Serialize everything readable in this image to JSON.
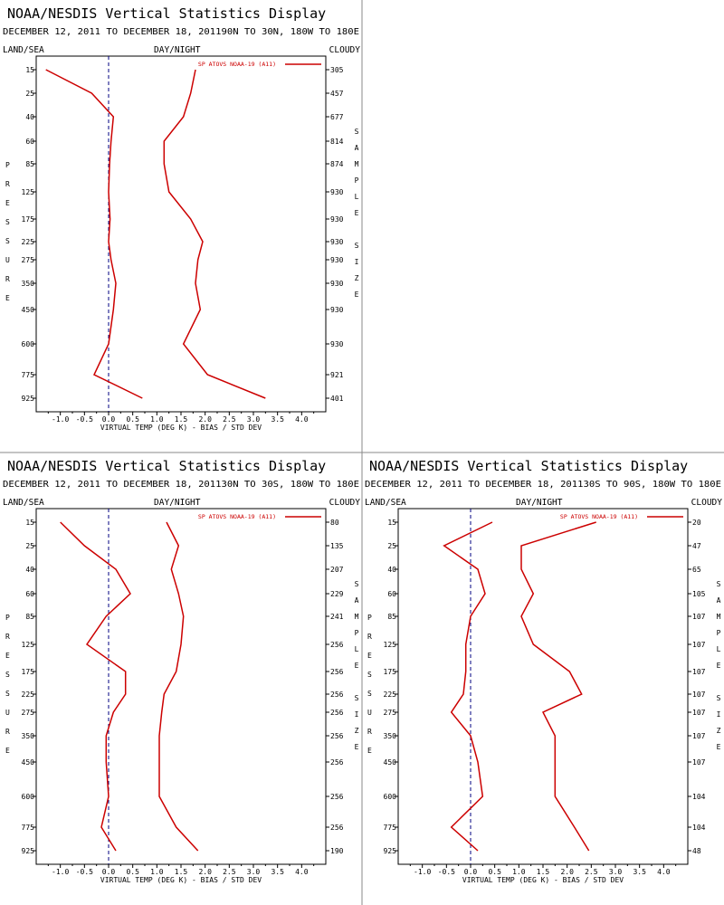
{
  "colors": {
    "series": "#cc0000",
    "zero_line": "#000080",
    "divider": "#888888"
  },
  "labels": {
    "land_sea": "LAND/SEA",
    "day_night": "DAY/NIGHT",
    "cloudy": "CLOUDY",
    "xlabel": "VIRTUAL TEMP (DEG K) - BIAS / STD DEV",
    "left_vertical": [
      "P",
      "R",
      "E",
      "S",
      "S",
      "U",
      "R",
      "E"
    ],
    "right_vertical": [
      "S",
      "A",
      "M",
      "P",
      "L",
      "E",
      "",
      "S",
      "I",
      "Z",
      "E"
    ]
  },
  "chart_data": [
    {
      "type": "line",
      "title": "NOAA/NESDIS Vertical Statistics Display",
      "subtitle": "DECEMBER 12, 2011 TO DECEMBER 18, 201190N TO 30N, 180W TO 180E",
      "legend": "SP ATOVS NOAA-19 (A11)",
      "legend_position": "top-right",
      "xlim": [
        -1.5,
        4.5
      ],
      "xticks": [
        "-1.0",
        "-0.5",
        "0.0",
        "0.5",
        "1.0",
        "1.5",
        "2.0",
        "2.5",
        "3.0",
        "3.5",
        "4.0"
      ],
      "pressure_levels": [
        "15",
        "25",
        "40",
        "60",
        "85",
        "125",
        "175",
        "225",
        "275",
        "350",
        "450",
        "600",
        "775",
        "925"
      ],
      "series": [
        {
          "values": [
            -1.3,
            -0.35,
            0.1,
            0.05,
            0.02,
            0.0,
            0.03,
            0.0,
            0.05,
            0.15,
            0.1,
            0.0,
            -0.3,
            0.7
          ]
        },
        {
          "values": [
            1.8,
            1.7,
            1.55,
            1.15,
            1.15,
            1.25,
            1.7,
            1.95,
            1.85,
            1.8,
            1.9,
            1.55,
            2.05,
            3.25
          ]
        }
      ],
      "sample_size": [
        "305",
        "457",
        "677",
        "814",
        "874",
        "930",
        "930",
        "930",
        "930",
        "930",
        "930",
        "930",
        "921",
        "401"
      ]
    },
    {
      "type": "line",
      "title": "NOAA/NESDIS Vertical Statistics Display",
      "subtitle": "DECEMBER 12, 2011 TO DECEMBER 18, 201130N TO 30S, 180W TO 180E",
      "legend": "SP ATOVS NOAA-19 (A11)",
      "legend_position": "top-right",
      "xlim": [
        -1.5,
        4.5
      ],
      "xticks": [
        "-1.0",
        "-0.5",
        "0.0",
        "0.5",
        "1.0",
        "1.5",
        "2.0",
        "2.5",
        "3.0",
        "3.5",
        "4.0"
      ],
      "pressure_levels": [
        "15",
        "25",
        "40",
        "60",
        "85",
        "125",
        "175",
        "225",
        "275",
        "350",
        "450",
        "600",
        "775",
        "925"
      ],
      "series": [
        {
          "values": [
            -1.0,
            -0.5,
            0.15,
            0.45,
            -0.05,
            -0.45,
            0.35,
            0.35,
            0.1,
            -0.05,
            -0.05,
            0.0,
            -0.15,
            0.15
          ]
        },
        {
          "values": [
            1.2,
            1.45,
            1.3,
            1.45,
            1.55,
            1.5,
            1.4,
            1.15,
            1.1,
            1.05,
            1.05,
            1.05,
            1.4,
            1.85
          ]
        }
      ],
      "sample_size": [
        "80",
        "135",
        "207",
        "229",
        "241",
        "256",
        "256",
        "256",
        "256",
        "256",
        "256",
        "256",
        "256",
        "190"
      ]
    },
    {
      "type": "line",
      "title": "NOAA/NESDIS Vertical Statistics Display",
      "subtitle": "DECEMBER 12, 2011 TO DECEMBER 18, 201130S TO 90S, 180W TO 180E",
      "legend": "SP ATOVS NOAA-19 (A11)",
      "legend_position": "top-right",
      "xlim": [
        -1.5,
        4.5
      ],
      "xticks": [
        "-1.0",
        "-0.5",
        "0.0",
        "0.5",
        "1.0",
        "1.5",
        "2.0",
        "2.5",
        "3.0",
        "3.5",
        "4.0"
      ],
      "pressure_levels": [
        "15",
        "25",
        "40",
        "60",
        "85",
        "125",
        "175",
        "225",
        "275",
        "350",
        "450",
        "600",
        "775",
        "925"
      ],
      "series": [
        {
          "values": [
            0.45,
            -0.55,
            0.15,
            0.3,
            0.0,
            -0.1,
            -0.1,
            -0.15,
            -0.4,
            0.0,
            0.15,
            0.25,
            -0.4,
            0.15
          ]
        },
        {
          "values": [
            2.6,
            1.05,
            1.05,
            1.3,
            1.05,
            1.3,
            2.05,
            2.3,
            1.5,
            1.75,
            1.75,
            1.75,
            2.15,
            2.45
          ]
        }
      ],
      "sample_size": [
        "20",
        "47",
        "65",
        "105",
        "107",
        "107",
        "107",
        "107",
        "107",
        "107",
        "107",
        "104",
        "104",
        "48"
      ]
    }
  ]
}
